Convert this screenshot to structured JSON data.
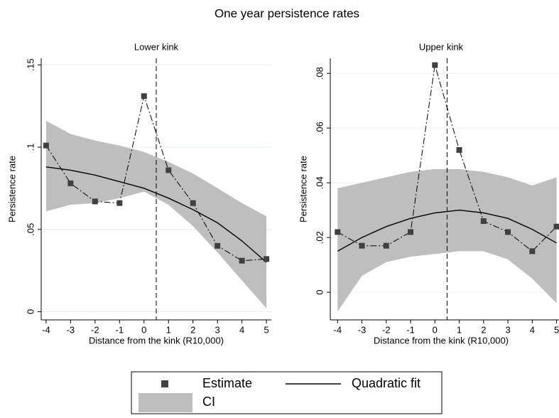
{
  "title": "One year persistence rates",
  "chart_data": [
    {
      "type": "line",
      "title": "Lower kink",
      "x_label": "Distance from the kink (R10,000)",
      "y_label": "Persistence rate",
      "x": [
        -4,
        -3,
        -2,
        -1,
        0,
        1,
        2,
        3,
        4,
        5
      ],
      "xlim": [
        -4.2,
        5.2
      ],
      "xticks": [
        -4,
        -3,
        -2,
        -1,
        0,
        1,
        2,
        3,
        4,
        5
      ],
      "ylim": [
        -0.005,
        0.154
      ],
      "yticks": [
        0,
        {
          "value": 0.05,
          "label": ".05"
        },
        {
          "value": 0.1,
          "label": ".1"
        },
        {
          "value": 0.15,
          "label": ".15"
        }
      ],
      "grid": true,
      "vline": 0.5,
      "legend": "bottom",
      "series": [
        {
          "name": "Estimate",
          "color": "#404040",
          "style": "marker-dashdot",
          "values": [
            0.101,
            0.078,
            0.067,
            0.066,
            0.131,
            0.086,
            0.066,
            0.04,
            0.031,
            0.032
          ]
        },
        {
          "name": "Quadratic fit",
          "color": "#000000",
          "style": "line",
          "values": [
            0.088,
            0.086,
            0.083,
            0.079,
            0.075,
            0.069,
            0.062,
            0.054,
            0.043,
            0.03
          ]
        },
        {
          "name": "CI",
          "color": "#bebebe",
          "style": "band",
          "lower": [
            0.061,
            0.065,
            0.066,
            0.069,
            0.073,
            0.065,
            0.052,
            0.036,
            0.019,
            0.002
          ],
          "upper": [
            0.116,
            0.108,
            0.104,
            0.101,
            0.097,
            0.091,
            0.084,
            0.075,
            0.066,
            0.058
          ]
        }
      ]
    },
    {
      "type": "line",
      "title": "Upper kink",
      "x_label": "Distance from the kink (R10,000)",
      "y_label": "Persistence rate",
      "x": [
        -4,
        -3,
        -2,
        -1,
        0,
        1,
        2,
        3,
        4,
        5
      ],
      "xlim": [
        -4.3,
        5.1
      ],
      "xticks": [
        -4,
        -3,
        -2,
        -1,
        0,
        1,
        2,
        3,
        4,
        5
      ],
      "ylim": [
        -0.0101,
        0.0855
      ],
      "yticks": [
        0,
        {
          "value": 0.02,
          "label": ".02"
        },
        {
          "value": 0.04,
          "label": ".04"
        },
        {
          "value": 0.06,
          "label": ".06"
        },
        {
          "value": 0.08,
          "label": ".08"
        }
      ],
      "grid": true,
      "vline": 0.5,
      "series": [
        {
          "color": "#404040",
          "style": "marker-dashdot",
          "values": [
            0.022,
            0.017,
            0.017,
            0.022,
            0.083,
            0.052,
            0.026,
            0.022,
            0.015,
            0.024
          ]
        },
        {
          "color": "#000000",
          "style": "line",
          "values": [
            0.015,
            0.02,
            0.024,
            0.027,
            0.029,
            0.03,
            0.029,
            0.027,
            0.023,
            0.018
          ]
        },
        {
          "color": "#bebebe",
          "style": "band",
          "lower": [
            -0.007,
            0.006,
            0.011,
            0.013,
            0.014,
            0.015,
            0.015,
            0.012,
            0.005,
            -0.004
          ],
          "upper": [
            0.038,
            0.04,
            0.042,
            0.044,
            0.045,
            0.045,
            0.044,
            0.042,
            0.039,
            0.042
          ]
        }
      ]
    }
  ]
}
